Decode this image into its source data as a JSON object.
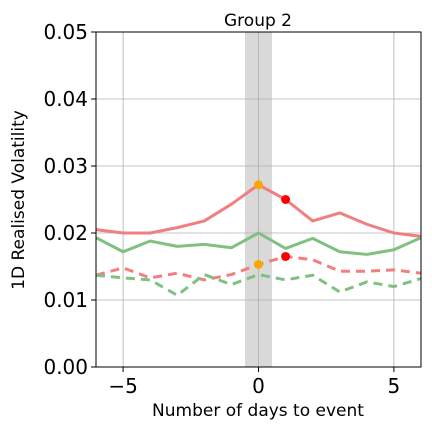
{
  "chart_data": {
    "type": "line",
    "title": "Group 2",
    "xlabel": "Number of days to event",
    "ylabel": "1D Realised Volatility",
    "xlim": [
      -6,
      6
    ],
    "ylim": [
      0,
      0.05
    ],
    "xticks": [
      {
        "value": -5,
        "label": "−5"
      },
      {
        "value": 0,
        "label": "0"
      },
      {
        "value": 5,
        "label": "5"
      }
    ],
    "yticks": [
      {
        "value": 0.0,
        "label": "0.00"
      },
      {
        "value": 0.01,
        "label": "0.01"
      },
      {
        "value": 0.02,
        "label": "0.02"
      },
      {
        "value": 0.03,
        "label": "0.03"
      },
      {
        "value": 0.04,
        "label": "0.04"
      },
      {
        "value": 0.05,
        "label": "0.05"
      }
    ],
    "grid": true,
    "event_band": {
      "x0": -0.5,
      "x1": 0.5,
      "color": "#d9d9d9"
    },
    "x": [
      -6,
      -5,
      -4,
      -3,
      -2,
      -1,
      0,
      1,
      2,
      3,
      4,
      5,
      6
    ],
    "series": [
      {
        "color": "#f08080",
        "style": "solid",
        "values": [
          0.0205,
          0.02,
          0.02,
          0.0208,
          0.0218,
          0.0243,
          0.0272,
          0.025,
          0.0218,
          0.023,
          0.0213,
          0.02,
          0.0195
        ]
      },
      {
        "color": "#80c080",
        "style": "solid",
        "values": [
          0.0193,
          0.0172,
          0.0188,
          0.018,
          0.0183,
          0.0178,
          0.02,
          0.0177,
          0.0192,
          0.0172,
          0.0168,
          0.0175,
          0.0193
        ]
      },
      {
        "color": "#f08080",
        "style": "dashed",
        "values": [
          0.0137,
          0.0148,
          0.0133,
          0.014,
          0.013,
          0.0138,
          0.0153,
          0.0165,
          0.016,
          0.0143,
          0.0143,
          0.0145,
          0.014
        ]
      },
      {
        "color": "#80c080",
        "style": "dashed",
        "values": [
          0.0137,
          0.0133,
          0.013,
          0.0107,
          0.0138,
          0.0123,
          0.0138,
          0.013,
          0.0137,
          0.0112,
          0.0127,
          0.012,
          0.0132
        ]
      }
    ],
    "markers": [
      {
        "x": 0,
        "y": 0.0272,
        "color": "#ffa500"
      },
      {
        "x": 1,
        "y": 0.025,
        "color": "#ff0000"
      },
      {
        "x": 0,
        "y": 0.0153,
        "color": "#ffa500"
      },
      {
        "x": 1,
        "y": 0.0165,
        "color": "#ff0000"
      }
    ]
  }
}
